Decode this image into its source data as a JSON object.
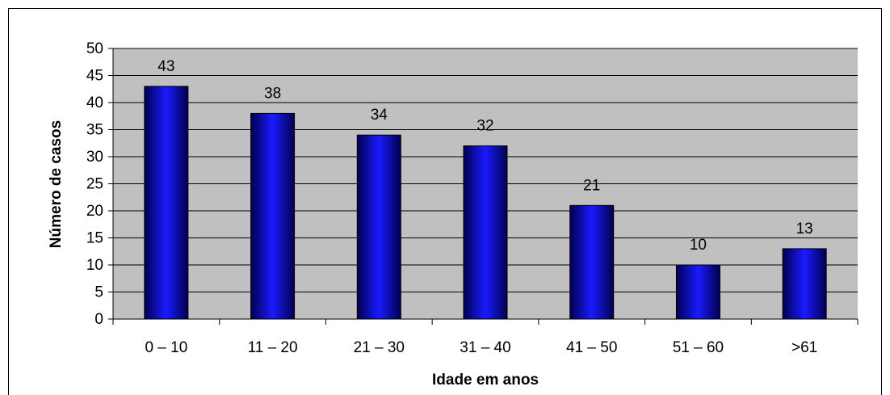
{
  "chart_data": {
    "type": "bar",
    "categories": [
      "0 – 10",
      "11 – 20",
      "21 – 30",
      "31 – 40",
      "41 – 50",
      "51 – 60",
      ">61"
    ],
    "values": [
      43,
      38,
      34,
      32,
      21,
      10,
      13
    ],
    "color": "#1a1aff",
    "xlabel": "Idade em anos",
    "ylabel": "Número de casos",
    "ylim": [
      0,
      50
    ],
    "yticks": [
      0,
      5,
      10,
      15,
      20,
      25,
      30,
      35,
      40,
      45,
      50
    ],
    "grid": true
  }
}
